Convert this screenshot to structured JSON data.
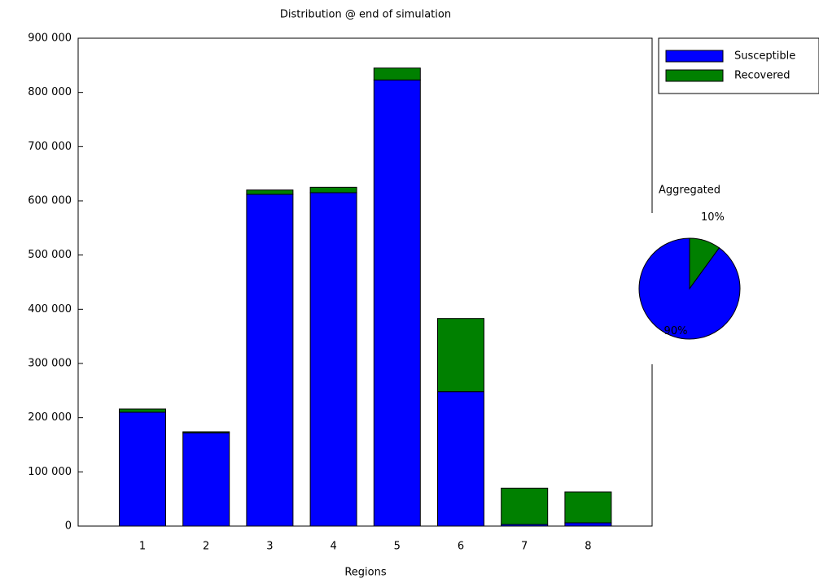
{
  "chart_data": [
    {
      "type": "bar",
      "stacked": true,
      "title": "Distribution @ end of simulation",
      "x_label": "Regions",
      "categories": [
        "1",
        "2",
        "3",
        "4",
        "5",
        "6",
        "7",
        "8"
      ],
      "series": [
        {
          "name": "Susceptible",
          "color": "#0000ff",
          "values": [
            210000,
            172000,
            612000,
            615000,
            823000,
            248000,
            3000,
            6000
          ]
        },
        {
          "name": "Recovered",
          "color": "#008000",
          "values": [
            6000,
            2000,
            8000,
            10000,
            22000,
            135000,
            67000,
            57000
          ]
        }
      ],
      "ylim": [
        0,
        900000
      ],
      "yticks": [
        0,
        {
          "value": 100000,
          "label": "100 000"
        },
        {
          "value": 200000,
          "label": "200 000"
        },
        {
          "value": 300000,
          "label": "300 000"
        },
        {
          "value": 400000,
          "label": "400 000"
        },
        {
          "value": 500000,
          "label": "500 000"
        },
        {
          "value": 600000,
          "label": "600 000"
        },
        {
          "value": 700000,
          "label": "700 000"
        },
        {
          "value": 800000,
          "label": "800 000"
        },
        {
          "value": 900000,
          "label": "900 000"
        }
      ],
      "grid": false,
      "legend": "top-right"
    },
    {
      "type": "pie",
      "title": "Aggregated",
      "categories": [
        "Susceptible",
        "Recovered"
      ],
      "values": [
        90,
        10
      ],
      "value_labels": [
        "90%",
        "10%"
      ],
      "colors": [
        "#0000ff",
        "#008000"
      ]
    }
  ]
}
